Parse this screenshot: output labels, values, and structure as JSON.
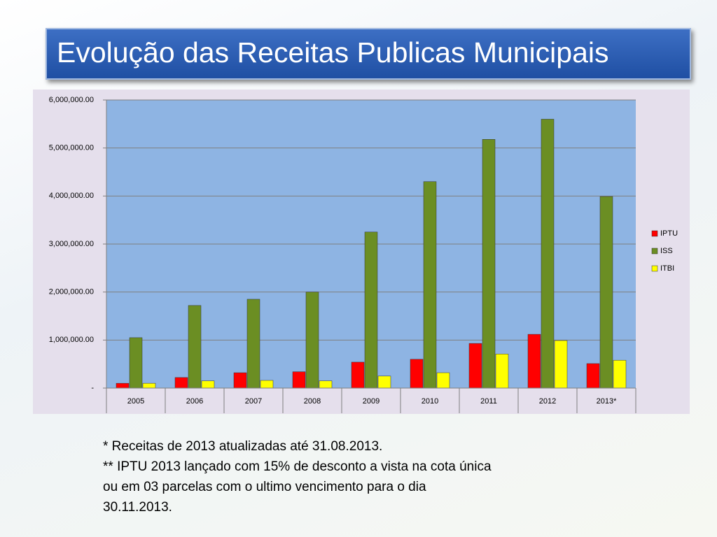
{
  "chart_data": {
    "type": "bar",
    "title": "Evolução das Receitas Publicas Municipais",
    "categories": [
      "2005",
      "2006",
      "2007",
      "2008",
      "2009",
      "2010",
      "2011",
      "2012",
      "2013*"
    ],
    "series": [
      {
        "name": "IPTU",
        "color": "#ff0000",
        "values": [
          100000,
          220000,
          320000,
          340000,
          540000,
          600000,
          930000,
          1120000,
          510000
        ]
      },
      {
        "name": "ISS",
        "color": "#6b8e23",
        "values": [
          1050000,
          1720000,
          1850000,
          2000000,
          3250000,
          4300000,
          5180000,
          5600000,
          3990000
        ]
      },
      {
        "name": "ITBI",
        "color": "#ffff00",
        "values": [
          100000,
          150000,
          160000,
          150000,
          250000,
          320000,
          710000,
          990000,
          580000
        ]
      }
    ],
    "ylim": [
      0,
      6000000
    ],
    "yticks": [
      {
        "value": 0,
        "label": "-"
      },
      {
        "value": 1000000,
        "label": "1,000,000.00"
      },
      {
        "value": 2000000,
        "label": "2,000,000.00"
      },
      {
        "value": 3000000,
        "label": "3,000,000.00"
      },
      {
        "value": 4000000,
        "label": "4,000,000.00"
      },
      {
        "value": 5000000,
        "label": "5,000,000.00"
      },
      {
        "value": 6000000,
        "label": "6,000,000.00"
      }
    ],
    "grid": true,
    "legend": "right",
    "notes": [
      "* Receitas de 2013 atualizadas até 31.08.2013.",
      "** IPTU 2013 lançado com 15% de desconto a vista na cota única",
      "ou em 03 parcelas com o ultimo vencimento para o dia",
      "30.11.2013."
    ]
  }
}
